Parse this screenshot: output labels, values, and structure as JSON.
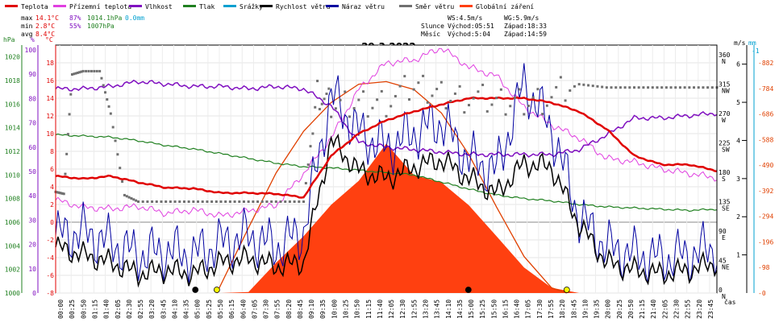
{
  "colors": {
    "temperature": "#e00000",
    "feels_like": "#e040e0",
    "humidity": "#8010c0",
    "pressure": "#208020",
    "precip": "#00a0d0",
    "wind_speed": "#000000",
    "wind_gust": "#0000a0",
    "wind_dir": "#707070",
    "radiation": "#ff4010",
    "radiation_curve": "#e04000"
  },
  "legend": [
    {
      "label": "Teplota",
      "color": "#e00000"
    },
    {
      "label": "Přízemní teplota",
      "color": "#e040e0"
    },
    {
      "label": "Vlhkost",
      "color": "#8010c0"
    },
    {
      "label": "Tlak",
      "color": "#208020"
    },
    {
      "label": "Srážky",
      "color": "#00a0d0"
    },
    {
      "label": "Rychlost větru",
      "color": "#000000"
    },
    {
      "label": "Náraz větru",
      "color": "#0000a0"
    },
    {
      "label": "Směr větru",
      "color": "#707070"
    },
    {
      "label": "Globální záření",
      "color": "#ff4010"
    }
  ],
  "stats": {
    "max_label": "max",
    "max_temp": "14.1°C",
    "max_hum": "87%",
    "max_press": "1014.1hPa",
    "rain": "0.0mm",
    "min_label": "min",
    "min_temp": "2.8°C",
    "min_hum": "55%",
    "min_press": "1007hPa",
    "avg_label": "avg",
    "avg_temp": "8.4°C"
  },
  "info": {
    "ws": "WS:4.5m/s",
    "wg": "WG:5.9m/s",
    "sun_label": "Slunce",
    "sunrise": "Východ:05:51",
    "sunset": "Západ:18:33",
    "moon_label": "Měsíc",
    "moonrise": "Východ:5:04",
    "moonset": "Západ:14:59"
  },
  "chart_data": {
    "type": "line",
    "title": "29.3.2022",
    "xlabel": "čas",
    "x_ticks": [
      "00:00",
      "00:25",
      "00:50",
      "01:15",
      "01:40",
      "02:05",
      "02:30",
      "02:55",
      "03:20",
      "03:45",
      "04:10",
      "04:35",
      "05:00",
      "05:25",
      "05:50",
      "06:15",
      "06:40",
      "07:05",
      "07:30",
      "07:55",
      "08:20",
      "08:45",
      "09:10",
      "09:35",
      "10:00",
      "10:25",
      "10:50",
      "11:15",
      "11:40",
      "12:05",
      "12:30",
      "12:55",
      "13:20",
      "13:45",
      "14:10",
      "14:35",
      "15:00",
      "15:25",
      "15:50",
      "16:15",
      "16:40",
      "17:05",
      "17:30",
      "17:55",
      "18:20",
      "18:45",
      "19:10",
      "19:35",
      "20:00",
      "20:25",
      "20:50",
      "21:15",
      "21:40",
      "22:05",
      "22:30",
      "22:55",
      "23:20",
      "23:45"
    ],
    "axes": {
      "hpa": {
        "label": "hPa",
        "ticks": [
          "1000",
          "1002",
          "1004",
          "1006",
          "1008",
          "1010",
          "1012",
          "1014",
          "1016",
          "1018",
          "1020"
        ],
        "range": [
          1000,
          1021
        ]
      },
      "humidity": {
        "label": "%",
        "ticks": [
          "0",
          "10",
          "20",
          "30",
          "40",
          "50",
          "60",
          "70",
          "80",
          "90",
          "100"
        ],
        "range": [
          0,
          102
        ]
      },
      "temperature": {
        "label": "°C",
        "ticks": [
          "-8",
          "-6",
          "-4",
          "-2",
          "0",
          "2",
          "4",
          "6",
          "8",
          "10",
          "12",
          "14",
          "16",
          "18"
        ],
        "range": [
          -8,
          20
        ]
      },
      "wind_dir": {
        "ticks": [
          "N",
          "NE",
          "E",
          "SE",
          "S",
          "SW",
          "W",
          "NW",
          "N"
        ],
        "values": [
          "0",
          "45",
          "90",
          "135",
          "180",
          "225",
          "270",
          "315",
          "360"
        ]
      },
      "wind_speed": {
        "label": "m/s",
        "ticks": [
          "1",
          "2",
          "3",
          "4",
          "5",
          "6"
        ],
        "range": [
          0,
          6.5
        ]
      },
      "rain": {
        "label": "mm",
        "top": "1"
      },
      "radiation": {
        "ticks": [
          "0",
          "98",
          "196",
          "294",
          "392",
          "490",
          "588",
          "686",
          "784",
          "882"
        ],
        "range": [
          0,
          950
        ]
      }
    },
    "series": [
      {
        "name": "Teplota",
        "unit": "°C",
        "x": [
          0,
          1,
          2,
          3,
          4,
          5,
          6,
          7,
          8,
          9,
          10,
          11,
          12,
          13,
          14,
          15,
          16,
          17,
          18,
          19,
          20,
          21,
          22,
          23,
          24
        ],
        "values": [
          5.2,
          4.9,
          5.2,
          4.5,
          3.9,
          3.8,
          3.3,
          3.3,
          3.2,
          2.8,
          7.5,
          10.0,
          11.5,
          12.5,
          13.3,
          14.0,
          14.0,
          14.0,
          13.5,
          12.5,
          10.5,
          7.5,
          6.5,
          6.5,
          5.8
        ]
      },
      {
        "name": "Přízemní teplota",
        "unit": "°C",
        "x": [
          0,
          1,
          2,
          3,
          4,
          5,
          6,
          7,
          8,
          9,
          10,
          11,
          12,
          13,
          14,
          15,
          16,
          17,
          18,
          19,
          20,
          21,
          22,
          23,
          24
        ],
        "values": [
          2.5,
          1.7,
          1.5,
          1.8,
          1.0,
          1.4,
          0.7,
          1.3,
          1.9,
          5.5,
          9.5,
          15.0,
          18.0,
          18.3,
          19.7,
          17.5,
          16.5,
          13.0,
          11.0,
          9.5,
          7.2,
          6.8,
          6.0,
          5.5,
          5.0
        ]
      },
      {
        "name": "Vlhkost",
        "unit": "%",
        "x": [
          0,
          1,
          2,
          3,
          4,
          5,
          6,
          7,
          8,
          9,
          10,
          11,
          12,
          13,
          14,
          15,
          16,
          17,
          18,
          19,
          20,
          21,
          22,
          23,
          24
        ],
        "values": [
          84,
          84,
          85,
          87,
          86,
          85,
          85,
          84,
          85,
          84,
          77,
          62,
          60,
          59,
          58,
          57,
          57,
          57,
          57,
          59,
          65,
          72,
          72,
          73,
          74
        ]
      },
      {
        "name": "Tlak",
        "unit": "hPa",
        "x": [
          0,
          1,
          2,
          3,
          4,
          5,
          6,
          7,
          8,
          9,
          10,
          11,
          12,
          13,
          14,
          15,
          16,
          17,
          18,
          19,
          20,
          21,
          22,
          23,
          24
        ],
        "values": [
          1013.4,
          1013.3,
          1013.2,
          1012.9,
          1012.5,
          1012.2,
          1011.8,
          1011.4,
          1011.0,
          1010.7,
          1010.6,
          1010.4,
          1010.2,
          1010.0,
          1009.4,
          1008.8,
          1008.3,
          1008.0,
          1007.8,
          1007.5,
          1007.3,
          1007.2,
          1007.1,
          1007.0,
          1007.1
        ]
      },
      {
        "name": "Rychlost větru",
        "unit": "m/s",
        "x": [
          0,
          1,
          2,
          3,
          4,
          5,
          6,
          7,
          8,
          9,
          10,
          11,
          12,
          13,
          14,
          15,
          16,
          17,
          18,
          19,
          20,
          21,
          22,
          23,
          24
        ],
        "values": [
          1.2,
          1.0,
          0.8,
          0.5,
          0.6,
          0.5,
          0.8,
          0.9,
          0.7,
          0.8,
          4.0,
          3.2,
          3.0,
          3.3,
          3.5,
          3.0,
          2.6,
          3.4,
          3.3,
          1.8,
          0.8,
          0.6,
          0.5,
          0.6,
          0.8
        ]
      },
      {
        "name": "Náraz větru",
        "unit": "m/s",
        "x": [
          0,
          1,
          2,
          3,
          4,
          5,
          6,
          7,
          8,
          9,
          10,
          11,
          12,
          13,
          14,
          15,
          16,
          17,
          18,
          19,
          20,
          21,
          22,
          23,
          24
        ],
        "values": [
          1.5,
          1.6,
          1.3,
          1.0,
          1.1,
          1.0,
          1.3,
          1.5,
          1.2,
          1.6,
          5.2,
          4.2,
          3.8,
          4.2,
          4.5,
          3.5,
          3.2,
          5.5,
          4.3,
          2.0,
          1.2,
          1.0,
          0.9,
          1.0,
          1.2
        ]
      },
      {
        "name": "Globální záření",
        "unit": "W/m2",
        "x": [
          6,
          7,
          8,
          9,
          10,
          11,
          12,
          13,
          14,
          15,
          16,
          17,
          18,
          19
        ],
        "values": [
          0,
          10,
          110,
          200,
          350,
          430,
          560,
          470,
          430,
          330,
          200,
          110,
          20,
          0
        ]
      },
      {
        "name": "Směr větru",
        "unit": "°",
        "x": [
          0,
          0.3,
          0.6,
          1.0,
          1.6,
          2.0,
          2.5,
          3,
          4,
          5,
          6,
          7,
          8,
          9,
          9.5,
          10,
          11,
          12,
          13,
          14,
          15,
          16,
          17,
          18,
          19,
          20,
          21,
          22,
          23,
          24
        ],
        "values": [
          155,
          152,
          335,
          340,
          340,
          275,
          150,
          140,
          140,
          140,
          140,
          140,
          140,
          140,
          310,
          285,
          290,
          295,
          315,
          305,
          300,
          290,
          295,
          300,
          320,
          315,
          315,
          315,
          315,
          315
        ]
      }
    ],
    "radiation_theoretical": {
      "x": [
        5.85,
        7,
        8,
        9,
        10,
        11,
        12,
        13,
        14,
        15,
        16,
        17,
        18,
        18.55
      ],
      "values": [
        0,
        250,
        460,
        620,
        730,
        800,
        810,
        780,
        690,
        530,
        330,
        140,
        20,
        0
      ]
    }
  }
}
